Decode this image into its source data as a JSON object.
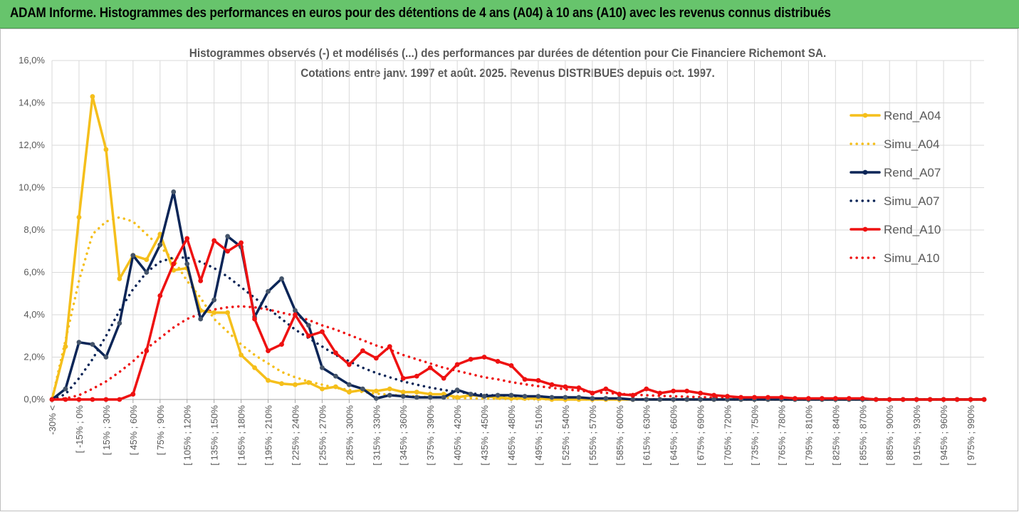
{
  "banner": {
    "title": "ADAM Informe. Histogrammes des performances en euros pour des détentions de 4 ans (A04) à 10 ans (A10) avec les revenus connus distribués"
  },
  "chart_data": {
    "type": "line",
    "title": "Histogrammes observés (-) et modélisés (...) des performances par durées de détention pour Cie Financiere Richemont SA.",
    "subtitle": "Cotations entre janv. 1997 et août. 2025. Revenus DISTRIBUES depuis oct. 1997.",
    "xlabel": "",
    "ylabel": "",
    "ylim": [
      0,
      16
    ],
    "y_ticks": [
      "0,0%",
      "2,0%",
      "4,0%",
      "6,0%",
      "8,0%",
      "10,0%",
      "12,0%",
      "14,0%",
      "16,0%"
    ],
    "x_tick_labels": [
      "-30% <",
      "[ -15% ; 0%",
      "[ 15% ; 30%",
      "[ 45% ; 60%",
      "[ 75% ; 90%",
      "[ 105% ; 120%",
      "[ 135% ; 150%",
      "[ 165% ; 180%",
      "[ 195% ; 210%",
      "[ 225% ; 240%",
      "[ 255% ; 270%",
      "[ 285% ; 300%",
      "[ 315% ; 330%",
      "[ 345% ; 360%",
      "[ 375% ; 390%",
      "[ 405% ; 420%",
      "[ 435% ; 450%",
      "[ 465% ; 480%",
      "[ 495% ; 510%",
      "[ 525% ; 540%",
      "[ 555% ; 570%",
      "[ 585% ; 600%",
      "[ 615% ; 630%",
      "[ 645% ; 660%",
      "[ 675% ; 690%",
      "[ 705% ; 720%",
      "[ 735% ; 750%",
      "[ 765% ; 780%",
      "[ 795% ; 810%",
      "[ 825% ; 840%",
      "[ 855% ; 870%",
      "[ 885% ; 900%",
      "[ 915% ; 930%",
      "[ 945% ; 960%",
      "[ 975% ; 990%"
    ],
    "n_categories": 70,
    "grid": true,
    "legend_position": "right",
    "series": [
      {
        "name": "Rend_A04",
        "style": "solid",
        "markers": true,
        "color": "#f5bf1b",
        "values": [
          0,
          2.5,
          8.6,
          14.3,
          11.8,
          5.7,
          6.8,
          6.6,
          7.8,
          6.1,
          6.2,
          4.2,
          4.1,
          4.1,
          2.1,
          1.5,
          0.9,
          0.75,
          0.7,
          0.8,
          0.5,
          0.6,
          0.35,
          0.45,
          0.4,
          0.5,
          0.35,
          0.35,
          0.25,
          0.25,
          0.1,
          0.2,
          0.15,
          0.1,
          0.05,
          0.05,
          0.05,
          0,
          0,
          0,
          0,
          0,
          0,
          0,
          0,
          0,
          0,
          0,
          0,
          0,
          0,
          0,
          0,
          0,
          0,
          0,
          0,
          0,
          0,
          0,
          0,
          0,
          0,
          0,
          0,
          0,
          0,
          0,
          0,
          0
        ]
      },
      {
        "name": "Simu_A04",
        "style": "dotted",
        "markers": false,
        "color": "#f5bf1b",
        "values": [
          0,
          2.8,
          5.6,
          7.8,
          8.4,
          8.6,
          8.4,
          7.8,
          7.2,
          6.6,
          5.6,
          4.8,
          3.8,
          3.2,
          2.6,
          2.1,
          1.7,
          1.3,
          1.05,
          0.85,
          0.7,
          0.55,
          0.45,
          0.35,
          0.28,
          0.22,
          0.18,
          0.14,
          0.11,
          0.09,
          0.07,
          0.05,
          0.04,
          0.03,
          0.02,
          0.02,
          0.01,
          0.01,
          0,
          0,
          0,
          0,
          0,
          0,
          0,
          0,
          0,
          0,
          0,
          0,
          0,
          0,
          0,
          0,
          0,
          0,
          0,
          0,
          0,
          0,
          0,
          0,
          0,
          0,
          0,
          0,
          0,
          0,
          0,
          0
        ]
      },
      {
        "name": "Rend_A07",
        "style": "solid",
        "markers": true,
        "color": "#0b2557",
        "values": [
          0,
          0.5,
          2.7,
          2.6,
          2.0,
          3.6,
          6.8,
          6.0,
          7.3,
          9.8,
          6.4,
          3.8,
          4.7,
          7.7,
          7.2,
          3.9,
          5.1,
          5.7,
          4.2,
          3.5,
          1.5,
          1.1,
          0.7,
          0.5,
          0.05,
          0.2,
          0.15,
          0.1,
          0.1,
          0.1,
          0.45,
          0.25,
          0.15,
          0.2,
          0.2,
          0.15,
          0.15,
          0.1,
          0.1,
          0.1,
          0.05,
          0.05,
          0.05,
          0,
          0,
          0,
          0,
          0,
          0,
          0,
          0,
          0,
          0,
          0,
          0,
          0,
          0,
          0,
          0,
          0,
          0,
          0,
          0,
          0,
          0,
          0,
          0,
          0,
          0,
          0
        ]
      },
      {
        "name": "Simu_A07",
        "style": "dotted",
        "markers": false,
        "color": "#0b2557",
        "values": [
          0,
          0.25,
          1.0,
          1.9,
          3.0,
          4.2,
          5.2,
          6.0,
          6.5,
          6.7,
          6.7,
          6.5,
          6.2,
          5.8,
          5.3,
          4.8,
          4.3,
          3.8,
          3.3,
          2.9,
          2.5,
          2.1,
          1.8,
          1.5,
          1.25,
          1.05,
          0.85,
          0.7,
          0.56,
          0.45,
          0.36,
          0.29,
          0.23,
          0.18,
          0.14,
          0.11,
          0.09,
          0.07,
          0.05,
          0.04,
          0.03,
          0.02,
          0.02,
          0.01,
          0.01,
          0.01,
          0,
          0,
          0,
          0,
          0,
          0,
          0,
          0,
          0,
          0,
          0,
          0,
          0,
          0,
          0,
          0,
          0,
          0,
          0,
          0,
          0,
          0,
          0,
          0
        ]
      },
      {
        "name": "Rend_A10",
        "style": "solid",
        "markers": true,
        "color": "#ee1111",
        "values": [
          0,
          0,
          0,
          0,
          0,
          0,
          0.25,
          2.3,
          4.9,
          6.4,
          7.6,
          5.6,
          7.5,
          7.0,
          7.4,
          3.8,
          2.3,
          2.6,
          4.0,
          3.0,
          3.2,
          2.2,
          1.65,
          2.3,
          1.95,
          2.5,
          1.0,
          1.1,
          1.5,
          1.0,
          1.65,
          1.9,
          2.0,
          1.8,
          1.6,
          0.95,
          0.9,
          0.7,
          0.6,
          0.55,
          0.3,
          0.5,
          0.25,
          0.2,
          0.5,
          0.3,
          0.4,
          0.4,
          0.3,
          0.2,
          0.15,
          0.1,
          0.1,
          0.1,
          0.1,
          0.05,
          0.05,
          0.05,
          0.05,
          0.05,
          0.05,
          0,
          0,
          0,
          0,
          0,
          0,
          0,
          0,
          0
        ]
      },
      {
        "name": "Simu_A10",
        "style": "dotted",
        "markers": false,
        "color": "#ee1111",
        "values": [
          0,
          0.05,
          0.2,
          0.5,
          0.85,
          1.3,
          1.8,
          2.4,
          2.9,
          3.4,
          3.8,
          4.05,
          4.25,
          4.35,
          4.4,
          4.35,
          4.25,
          4.1,
          3.95,
          3.75,
          3.5,
          3.3,
          3.05,
          2.8,
          2.55,
          2.35,
          2.1,
          1.9,
          1.7,
          1.5,
          1.35,
          1.2,
          1.05,
          0.95,
          0.82,
          0.72,
          0.63,
          0.55,
          0.48,
          0.42,
          0.36,
          0.31,
          0.27,
          0.23,
          0.2,
          0.17,
          0.15,
          0.13,
          0.11,
          0.09,
          0.08,
          0.07,
          0.06,
          0.05,
          0.04,
          0.04,
          0.03,
          0.03,
          0.02,
          0.02,
          0.02,
          0.01,
          0.01,
          0.01,
          0.01,
          0.01,
          0,
          0,
          0,
          0
        ]
      }
    ]
  }
}
